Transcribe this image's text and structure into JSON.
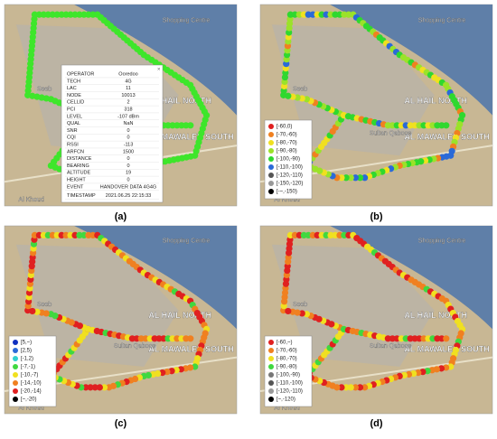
{
  "map_labels": [
    "Seeb",
    "AL HAIL NORTH",
    "AL MAWALEH SOUTH",
    "Sultan Qaboos",
    "Shopping Centre",
    "Al Khoud"
  ],
  "panels": [
    {
      "label": "(a)",
      "route_color": "#3ee62b",
      "info_table": [
        [
          "OPERATOR",
          "Ooredoo"
        ],
        [
          "TECH",
          "4G"
        ],
        [
          "LAC",
          "11"
        ],
        [
          "NODE",
          "10013"
        ],
        [
          "CELLID",
          "2"
        ],
        [
          "PCI",
          "318"
        ],
        [
          "LEVEL",
          "-107 dBm"
        ],
        [
          "QUAL",
          "NaN"
        ],
        [
          "SNR",
          "0"
        ],
        [
          "CQI",
          "0"
        ],
        [
          "RSSI",
          "-113"
        ],
        [
          "ARFCN",
          "1500"
        ],
        [
          "DISTANCE",
          "0"
        ],
        [
          "BEARING",
          "0"
        ],
        [
          "ALTITUDE",
          "19"
        ],
        [
          "HEIGHT",
          "0"
        ],
        [
          "EVENT",
          "HANDOVER DATA 4G4G"
        ],
        [
          "TIMESTAMP",
          "2021.06.25 22:15:33"
        ]
      ]
    },
    {
      "label": "(b)",
      "legend": [
        {
          "text": "[-60,0)",
          "color": "#e02020"
        },
        {
          "text": "[-70,-60)",
          "color": "#f08020"
        },
        {
          "text": "[-80,-70)",
          "color": "#f0e020"
        },
        {
          "text": "[-90,-80)",
          "color": "#9be22a"
        },
        {
          "text": "[-100,-90)",
          "color": "#2fd82f"
        },
        {
          "text": "[-110,-100)",
          "color": "#2a6ad8"
        },
        {
          "text": "[-120,-110)",
          "color": "#555555"
        },
        {
          "text": "[-150,-120)",
          "color": "#999999"
        },
        {
          "text": "[-~,-150)",
          "color": "#000000"
        }
      ]
    },
    {
      "label": "(c)",
      "legend": [
        {
          "text": "[5,~)",
          "color": "#1030c0"
        },
        {
          "text": "[2,5)",
          "color": "#2a6ad8"
        },
        {
          "text": "[-1,2)",
          "color": "#30d0d0"
        },
        {
          "text": "[-7,-1)",
          "color": "#40d840"
        },
        {
          "text": "[-10,-7)",
          "color": "#f0e020"
        },
        {
          "text": "[-14,-10)",
          "color": "#f08020"
        },
        {
          "text": "[-20,-14)",
          "color": "#e02020"
        },
        {
          "text": "[~,-20)",
          "color": "#000000"
        }
      ]
    },
    {
      "label": "(d)",
      "legend": [
        {
          "text": "[-60,~)",
          "color": "#e02020"
        },
        {
          "text": "[-70,-60)",
          "color": "#f08020"
        },
        {
          "text": "[-80,-70)",
          "color": "#f0e020"
        },
        {
          "text": "[-90,-80)",
          "color": "#40d840"
        },
        {
          "text": "[-100,-90)",
          "color": "#777777"
        },
        {
          "text": "[-110,-100)",
          "color": "#555555"
        },
        {
          "text": "[-120,-110)",
          "color": "#999999"
        },
        {
          "text": "[~,-120)",
          "color": "#000000"
        }
      ]
    }
  ]
}
